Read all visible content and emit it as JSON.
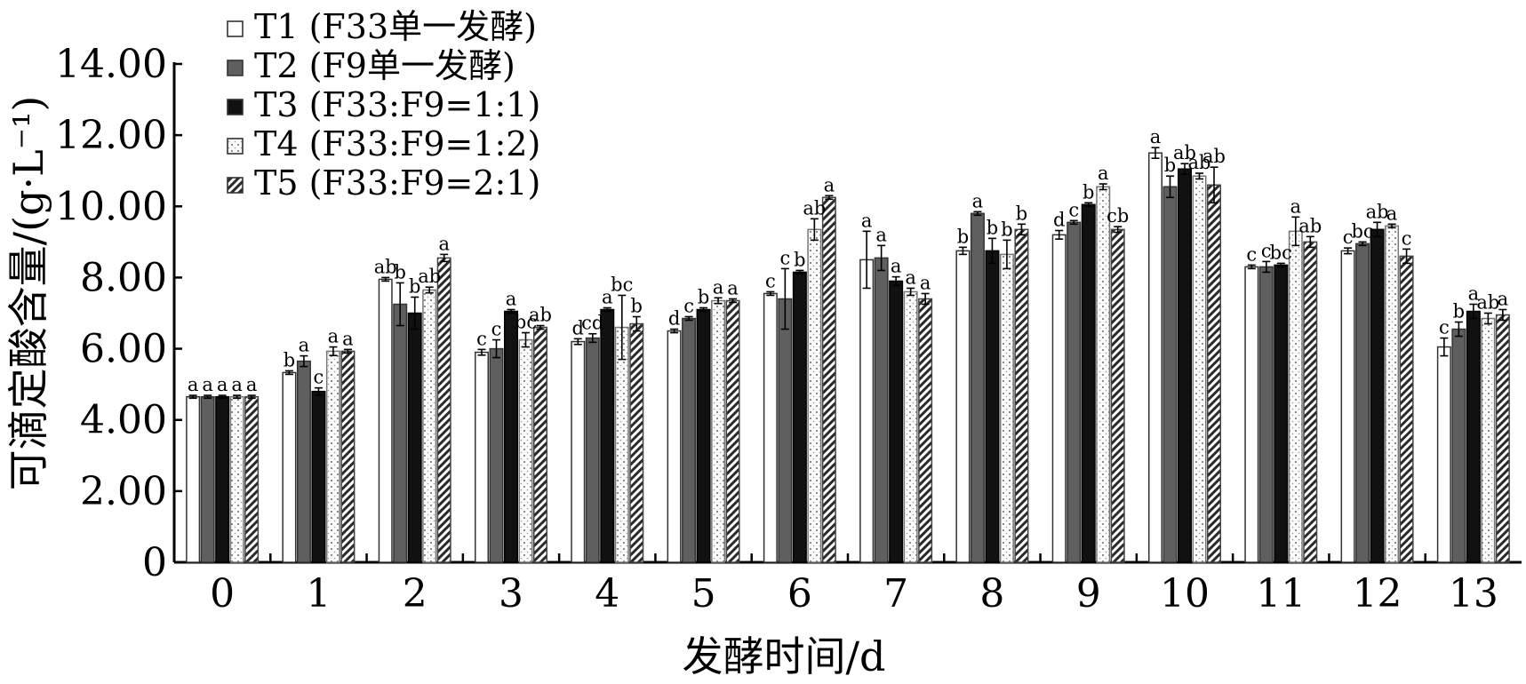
{
  "chart_data": {
    "type": "bar",
    "xlabel": "发酵时间/d",
    "ylabel": "可滴定酸含量/(g·L⁻¹)",
    "ylim": [
      0,
      14
    ],
    "yticks": [
      "0",
      "2.00",
      "4.00",
      "6.00",
      "8.00",
      "10.00",
      "12.00",
      "14.00"
    ],
    "categories": [
      "0",
      "1",
      "2",
      "3",
      "4",
      "5",
      "6",
      "7",
      "8",
      "9",
      "10",
      "11",
      "12",
      "13"
    ],
    "grid": false,
    "legend_position": "top-left",
    "series": [
      {
        "name": "T1 (F33单一发酵)",
        "values": [
          4.65,
          5.33,
          7.95,
          5.9,
          6.2,
          6.5,
          7.55,
          8.5,
          8.75,
          9.2,
          11.5,
          8.3,
          8.75,
          6.05
        ],
        "errors": [
          0.04,
          0.05,
          0.05,
          0.08,
          0.08,
          0.05,
          0.05,
          0.8,
          0.1,
          0.12,
          0.15,
          0.05,
          0.08,
          0.25
        ],
        "labels": [
          "a",
          "b",
          "ab",
          "c",
          "d",
          "d",
          "c",
          "a",
          "b",
          "d",
          "a",
          "c",
          "c",
          "c"
        ],
        "color": "#ffffff"
      },
      {
        "name": "T2 (F9单一发酵)",
        "values": [
          4.65,
          5.65,
          7.25,
          6.0,
          6.3,
          6.85,
          7.4,
          8.55,
          9.8,
          9.55,
          10.55,
          8.3,
          8.95,
          6.55
        ],
        "errors": [
          0.04,
          0.15,
          0.6,
          0.25,
          0.12,
          0.05,
          0.85,
          0.35,
          0.05,
          0.05,
          0.3,
          0.15,
          0.05,
          0.2
        ],
        "labels": [
          "a",
          "a",
          "b",
          "c",
          "cd",
          "c",
          "c",
          "a",
          "a",
          "c",
          "b",
          "c",
          "bc",
          "b"
        ],
        "color": "#5f5f5f"
      },
      {
        "name": "T3 (F33:F9=1:1)",
        "values": [
          4.65,
          4.8,
          7.0,
          7.05,
          7.1,
          7.1,
          8.15,
          7.9,
          8.75,
          10.05,
          11.05,
          8.35,
          9.35,
          7.05
        ],
        "errors": [
          0.04,
          0.1,
          0.45,
          0.05,
          0.05,
          0.05,
          0.05,
          0.12,
          0.35,
          0.05,
          0.15,
          0.05,
          0.2,
          0.2
        ],
        "labels": [
          "a",
          "c",
          "b",
          "a",
          "a",
          "b",
          "b",
          "a",
          "b",
          "b",
          "ab",
          "bc",
          "ab",
          "a"
        ],
        "color": "#111111"
      },
      {
        "name": "T4 (F33:F9=1:2)",
        "values": [
          4.65,
          5.93,
          7.65,
          6.25,
          6.6,
          7.35,
          9.35,
          7.6,
          8.65,
          10.55,
          10.85,
          9.3,
          9.45,
          6.85
        ],
        "errors": [
          0.04,
          0.12,
          0.08,
          0.2,
          0.9,
          0.08,
          0.3,
          0.1,
          0.4,
          0.08,
          0.08,
          0.4,
          0.05,
          0.15
        ],
        "labels": [
          "a",
          "a",
          "ab",
          "bc",
          "bc",
          "a",
          "ab",
          "a",
          "b",
          "a",
          "ab",
          "a",
          "a",
          "ab"
        ],
        "color": "#f5f5f5"
      },
      {
        "name": "T5 (F33:F9=2:1)",
        "values": [
          4.65,
          5.93,
          8.55,
          6.6,
          6.7,
          7.35,
          10.25,
          7.4,
          9.35,
          9.35,
          10.6,
          9.0,
          8.6,
          6.95
        ],
        "errors": [
          0.04,
          0.05,
          0.1,
          0.05,
          0.2,
          0.05,
          0.05,
          0.15,
          0.15,
          0.08,
          0.5,
          0.15,
          0.2,
          0.15
        ],
        "labels": [
          "a",
          "a",
          "a",
          "ab",
          "b",
          "a",
          "a",
          "a",
          "b",
          "cb",
          "ab",
          "ab",
          "c",
          "a"
        ],
        "color": "#8a8a8a"
      }
    ]
  }
}
